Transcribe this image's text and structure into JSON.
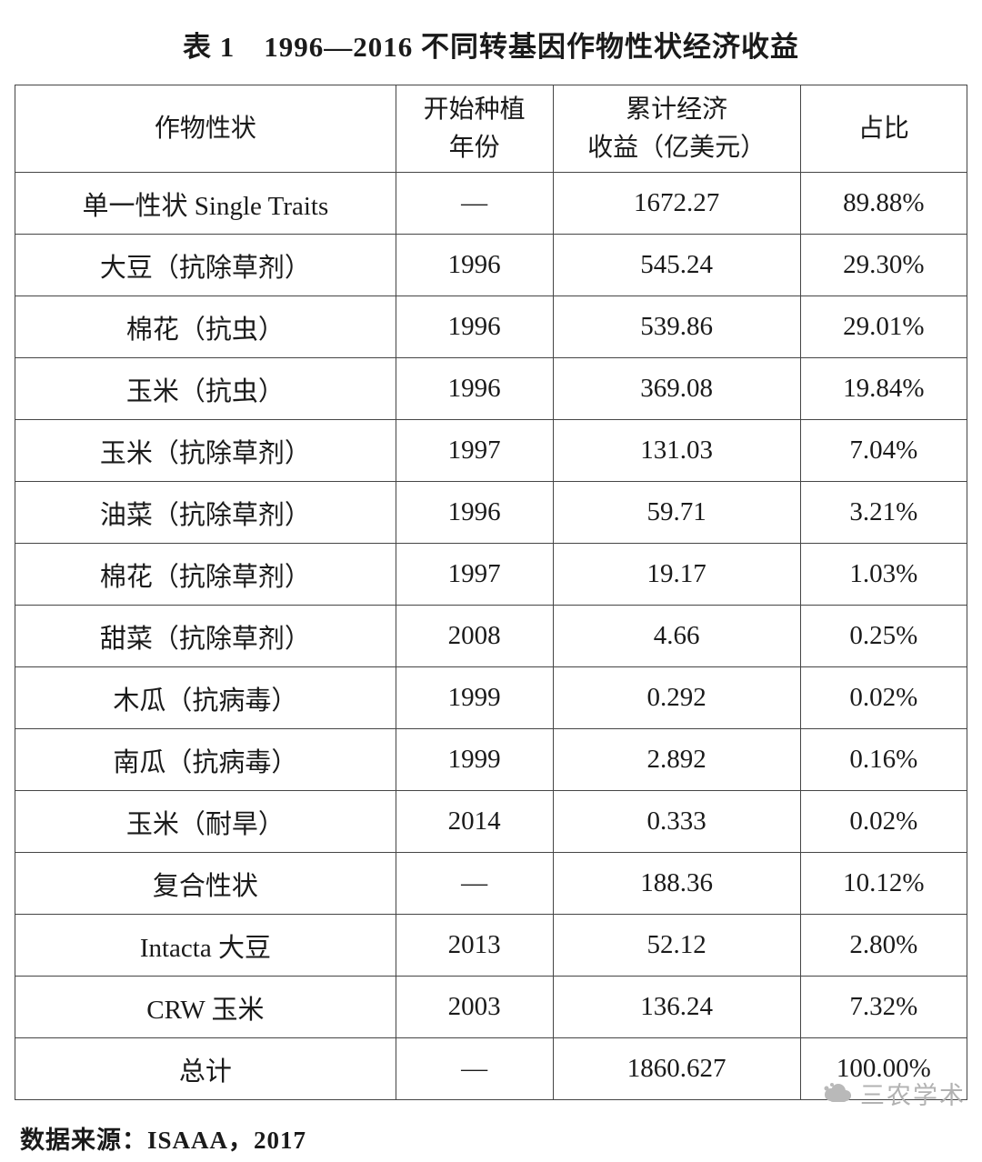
{
  "title": "表 1　1996—2016 不同转基因作物性状经济收益",
  "table": {
    "headers": {
      "trait": "作物性状",
      "year_line1": "开始种植",
      "year_line2": "年份",
      "revenue_line1": "累计经济",
      "revenue_line2": "收益（亿美元）",
      "share": "占比"
    },
    "rows": [
      {
        "trait": "单一性状 Single Traits",
        "year": "—",
        "revenue": "1672.27",
        "share": "89.88%"
      },
      {
        "trait": "大豆（抗除草剂）",
        "year": "1996",
        "revenue": "545.24",
        "share": "29.30%"
      },
      {
        "trait": "棉花（抗虫）",
        "year": "1996",
        "revenue": "539.86",
        "share": "29.01%"
      },
      {
        "trait": "玉米（抗虫）",
        "year": "1996",
        "revenue": "369.08",
        "share": "19.84%"
      },
      {
        "trait": "玉米（抗除草剂）",
        "year": "1997",
        "revenue": "131.03",
        "share": "7.04%"
      },
      {
        "trait": "油菜（抗除草剂）",
        "year": "1996",
        "revenue": "59.71",
        "share": "3.21%"
      },
      {
        "trait": "棉花（抗除草剂）",
        "year": "1997",
        "revenue": "19.17",
        "share": "1.03%"
      },
      {
        "trait": "甜菜（抗除草剂）",
        "year": "2008",
        "revenue": "4.66",
        "share": "0.25%"
      },
      {
        "trait": "木瓜（抗病毒）",
        "year": "1999",
        "revenue": "0.292",
        "share": "0.02%"
      },
      {
        "trait": "南瓜（抗病毒）",
        "year": "1999",
        "revenue": "2.892",
        "share": "0.16%"
      },
      {
        "trait": "玉米（耐旱）",
        "year": "2014",
        "revenue": "0.333",
        "share": "0.02%"
      },
      {
        "trait": "复合性状",
        "year": "—",
        "revenue": "188.36",
        "share": "10.12%"
      },
      {
        "trait": "Intacta 大豆",
        "year": "2013",
        "revenue": "52.12",
        "share": "2.80%"
      },
      {
        "trait": "CRW 玉米",
        "year": "2003",
        "revenue": "136.24",
        "share": "7.32%"
      },
      {
        "trait": "总计",
        "year": "—",
        "revenue": "1860.627",
        "share": "100.00%"
      }
    ]
  },
  "footer": {
    "source": "数据来源：ISAAA，2017"
  },
  "watermark": {
    "label": "三农学术"
  },
  "colors": {
    "border": "#454545",
    "text": "#1a1a1a",
    "watermark": "#b2b2b2"
  }
}
